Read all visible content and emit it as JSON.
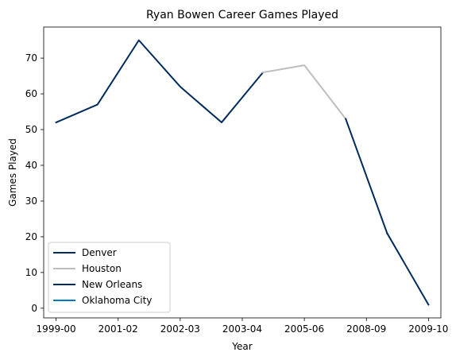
{
  "chart_data": {
    "type": "line",
    "title": "Ryan Bowen Career Games Played",
    "xlabel": "Year",
    "ylabel": "Games Played",
    "x_tick_labels": [
      "1999-00",
      "2001-02",
      "2002-03",
      "2003-04",
      "2005-06",
      "2008-09",
      "2009-10"
    ],
    "y_ticks": [
      0,
      10,
      20,
      30,
      40,
      50,
      60,
      70
    ],
    "xlim": [
      -0.3,
      9.3
    ],
    "ylim": [
      -2.7,
      78.7
    ],
    "grid": false,
    "legend_position": "lower-left",
    "series": [
      {
        "name": "Denver",
        "color": "#002B5C",
        "points": [
          {
            "x": 0,
            "y": 52
          },
          {
            "x": 1,
            "y": 57
          },
          {
            "x": 2,
            "y": 75
          },
          {
            "x": 3,
            "y": 62
          },
          {
            "x": 4,
            "y": 52
          },
          {
            "x": 5,
            "y": 66
          }
        ]
      },
      {
        "name": "Houston",
        "color": "#BEBEBE",
        "points": [
          {
            "x": 5,
            "y": 66
          },
          {
            "x": 6,
            "y": 68
          },
          {
            "x": 7,
            "y": 53
          }
        ]
      },
      {
        "name": "New Orleans",
        "color": "#002B5C",
        "points": [
          {
            "x": 7,
            "y": 53
          },
          {
            "x": 8,
            "y": 21
          }
        ]
      },
      {
        "name": "Oklahoma City",
        "color": "#002B5C",
        "legend_color": "#007AC1",
        "points": [
          {
            "x": 8,
            "y": 21
          },
          {
            "x": 9,
            "y": 1
          }
        ]
      }
    ]
  }
}
